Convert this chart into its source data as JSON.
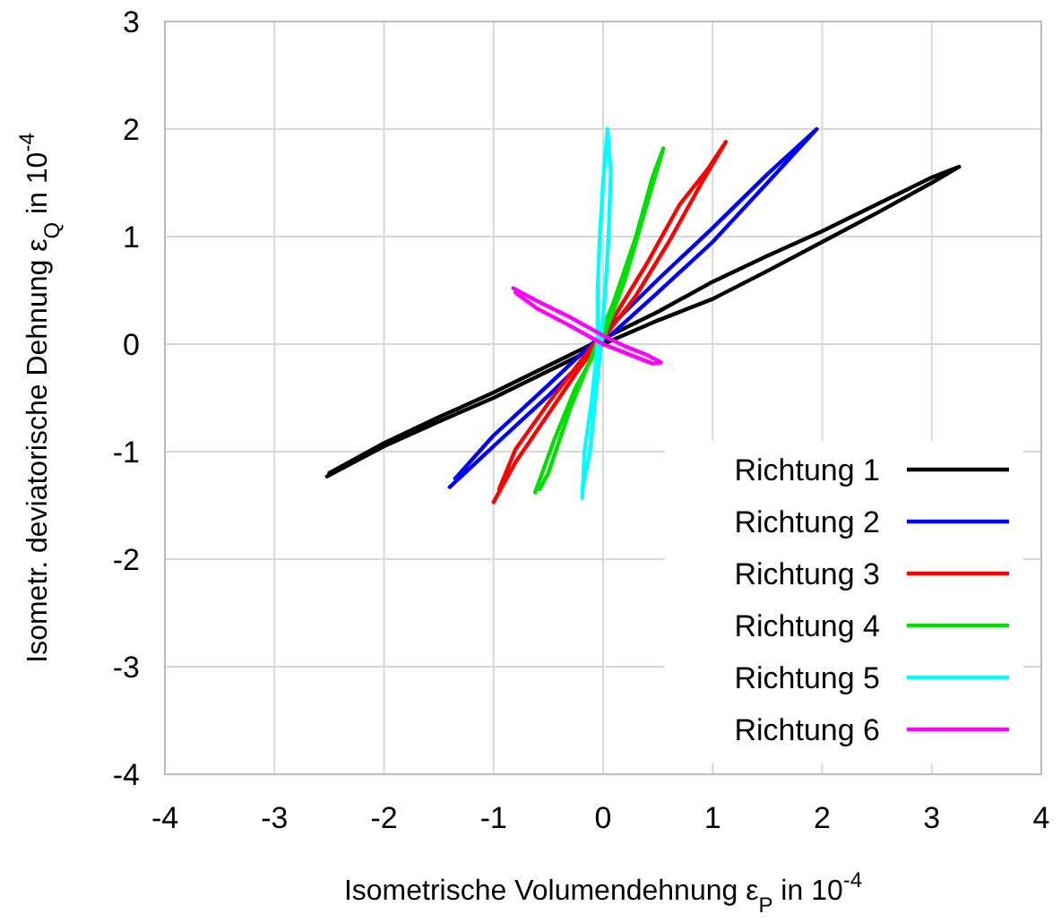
{
  "chart_data": {
    "type": "line",
    "xlabel": "Isometrische Volumendehnung ε$_{P}$ in 10$^{-4}$",
    "ylabel": "Isometr. deviatorische Dehnung ε$_{Q}$ in 10$^{-4}$",
    "xlim": [
      -4,
      4
    ],
    "ylim": [
      -4,
      3
    ],
    "xticks": [
      -4,
      -3,
      -2,
      -1,
      0,
      1,
      2,
      3,
      4
    ],
    "yticks": [
      -4,
      -3,
      -2,
      -1,
      0,
      1,
      2,
      3
    ],
    "grid": true,
    "legend": "bottom right",
    "marker": "none",
    "line_style": "solid",
    "series": [
      {
        "name": "Richtung 1",
        "color": "#000000",
        "x": [
          -2.52,
          -2,
          -1.5,
          -1,
          -0.5,
          0,
          0.5,
          1,
          1.5,
          2,
          2.5,
          3,
          3.25,
          3,
          2.5,
          2,
          1.5,
          1,
          0.5,
          0,
          -0.5,
          -1,
          -1.5,
          -2,
          -2.5
        ],
        "values": [
          -1.23,
          -0.95,
          -0.72,
          -0.5,
          -0.25,
          0,
          0.22,
          0.42,
          0.68,
          0.95,
          1.22,
          1.5,
          1.65,
          1.55,
          1.3,
          1.05,
          0.82,
          0.58,
          0.3,
          0.05,
          -0.2,
          -0.45,
          -0.68,
          -0.92,
          -1.2
        ]
      },
      {
        "name": "Richtung 2",
        "color": "#0000ff",
        "x": [
          -1.4,
          -1,
          -0.5,
          0,
          0.5,
          1,
          1.5,
          1.95,
          1.5,
          1,
          0.5,
          0,
          -0.5,
          -1,
          -1.35
        ],
        "values": [
          -1.33,
          -0.95,
          -0.48,
          0.02,
          0.48,
          0.95,
          1.5,
          2.0,
          1.58,
          1.08,
          0.6,
          0.1,
          -0.38,
          -0.85,
          -1.25
        ]
      },
      {
        "name": "Richtung 3",
        "color": "#ff0000",
        "x": [
          -1,
          -0.8,
          -0.5,
          -0.2,
          0,
          0.3,
          0.6,
          0.9,
          1.12,
          0.95,
          0.7,
          0.4,
          0.1,
          -0.2,
          -0.5,
          -0.8,
          -0.95
        ],
        "values": [
          -1.47,
          -1.1,
          -0.65,
          -0.2,
          0.05,
          0.45,
          0.95,
          1.5,
          1.88,
          1.62,
          1.3,
          0.75,
          0.25,
          -0.15,
          -0.55,
          -0.98,
          -1.35
        ]
      },
      {
        "name": "Richtung 4",
        "color": "#00e000",
        "x": [
          -0.62,
          -0.45,
          -0.25,
          0,
          0.2,
          0.4,
          0.55,
          0.45,
          0.3,
          0.1,
          -0.1,
          -0.3,
          -0.5,
          -0.58
        ],
        "values": [
          -1.38,
          -0.9,
          -0.4,
          0.05,
          0.6,
          1.3,
          1.82,
          1.55,
          1.0,
          0.4,
          -0.1,
          -0.6,
          -1.2,
          -1.35
        ]
      },
      {
        "name": "Richtung 5",
        "color": "#00ffff",
        "x": [
          -0.19,
          -0.17,
          -0.1,
          -0.05,
          -0.05,
          -0.03,
          0,
          0.04,
          0.07,
          0.05,
          0.02,
          -0.02,
          -0.07,
          -0.12,
          -0.19
        ],
        "values": [
          -1.43,
          -1.0,
          -0.5,
          0,
          0.5,
          1.0,
          1.5,
          2.0,
          1.6,
          1.0,
          0.5,
          0,
          -0.5,
          -1.0,
          -1.35
        ]
      },
      {
        "name": "Richtung 6",
        "color": "#ff00ff",
        "x": [
          -0.82,
          -0.6,
          -0.3,
          0,
          0.2,
          0.4,
          0.53,
          0.45,
          0.2,
          0,
          -0.3,
          -0.6,
          -0.8
        ],
        "values": [
          0.52,
          0.4,
          0.25,
          0.08,
          -0.02,
          -0.1,
          -0.17,
          -0.18,
          -0.08,
          0,
          0.17,
          0.33,
          0.48
        ]
      }
    ]
  }
}
